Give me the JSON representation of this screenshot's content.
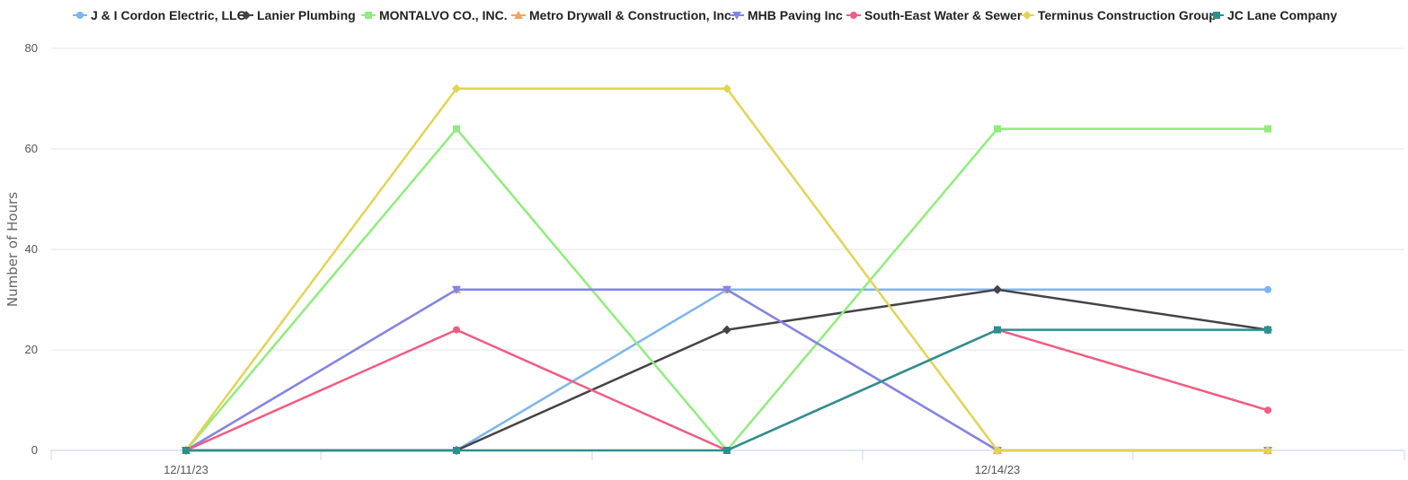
{
  "chart_data": {
    "type": "line",
    "title": "",
    "xlabel": "",
    "ylabel": "Number of Hours",
    "ylim": [
      0,
      80
    ],
    "yticks": [
      0,
      20,
      40,
      60,
      80
    ],
    "x": [
      "12/11/23",
      "12/12/23",
      "12/13/23",
      "12/14/23",
      "12/15/23"
    ],
    "x_tick_labels": [
      "12/11/23",
      "",
      "",
      "12/14/23",
      ""
    ],
    "grid": "horizontal",
    "legend_position": "top",
    "series": [
      {
        "name": "J & I Cordon Electric, LLC",
        "color": "#7cb5ec",
        "marker": "circle",
        "values": [
          0,
          0,
          32,
          32,
          32
        ]
      },
      {
        "name": "Lanier Plumbing",
        "color": "#434348",
        "marker": "diamond",
        "values": [
          0,
          0,
          24,
          32,
          24
        ]
      },
      {
        "name": "MONTALVO CO., INC.",
        "color": "#90ed7d",
        "marker": "square",
        "values": [
          0,
          64,
          0,
          64,
          64
        ]
      },
      {
        "name": "Metro Drywall & Construction, Inc.",
        "color": "#f7a35c",
        "marker": "triangle",
        "values": [
          0,
          32,
          32,
          0,
          0
        ]
      },
      {
        "name": "MHB Paving Inc",
        "color": "#8085e9",
        "marker": "triangle-down",
        "values": [
          0,
          32,
          32,
          0,
          0
        ]
      },
      {
        "name": "South-East Water & Sewer",
        "color": "#f15c80",
        "marker": "circle",
        "values": [
          0,
          24,
          0,
          24,
          8
        ]
      },
      {
        "name": "Terminus Construction Group",
        "color": "#e4d354",
        "marker": "diamond",
        "values": [
          0,
          72,
          72,
          0,
          0
        ]
      },
      {
        "name": "JC Lane Company",
        "color": "#2b908f",
        "marker": "square",
        "values": [
          0,
          0,
          0,
          24,
          24
        ]
      }
    ]
  }
}
